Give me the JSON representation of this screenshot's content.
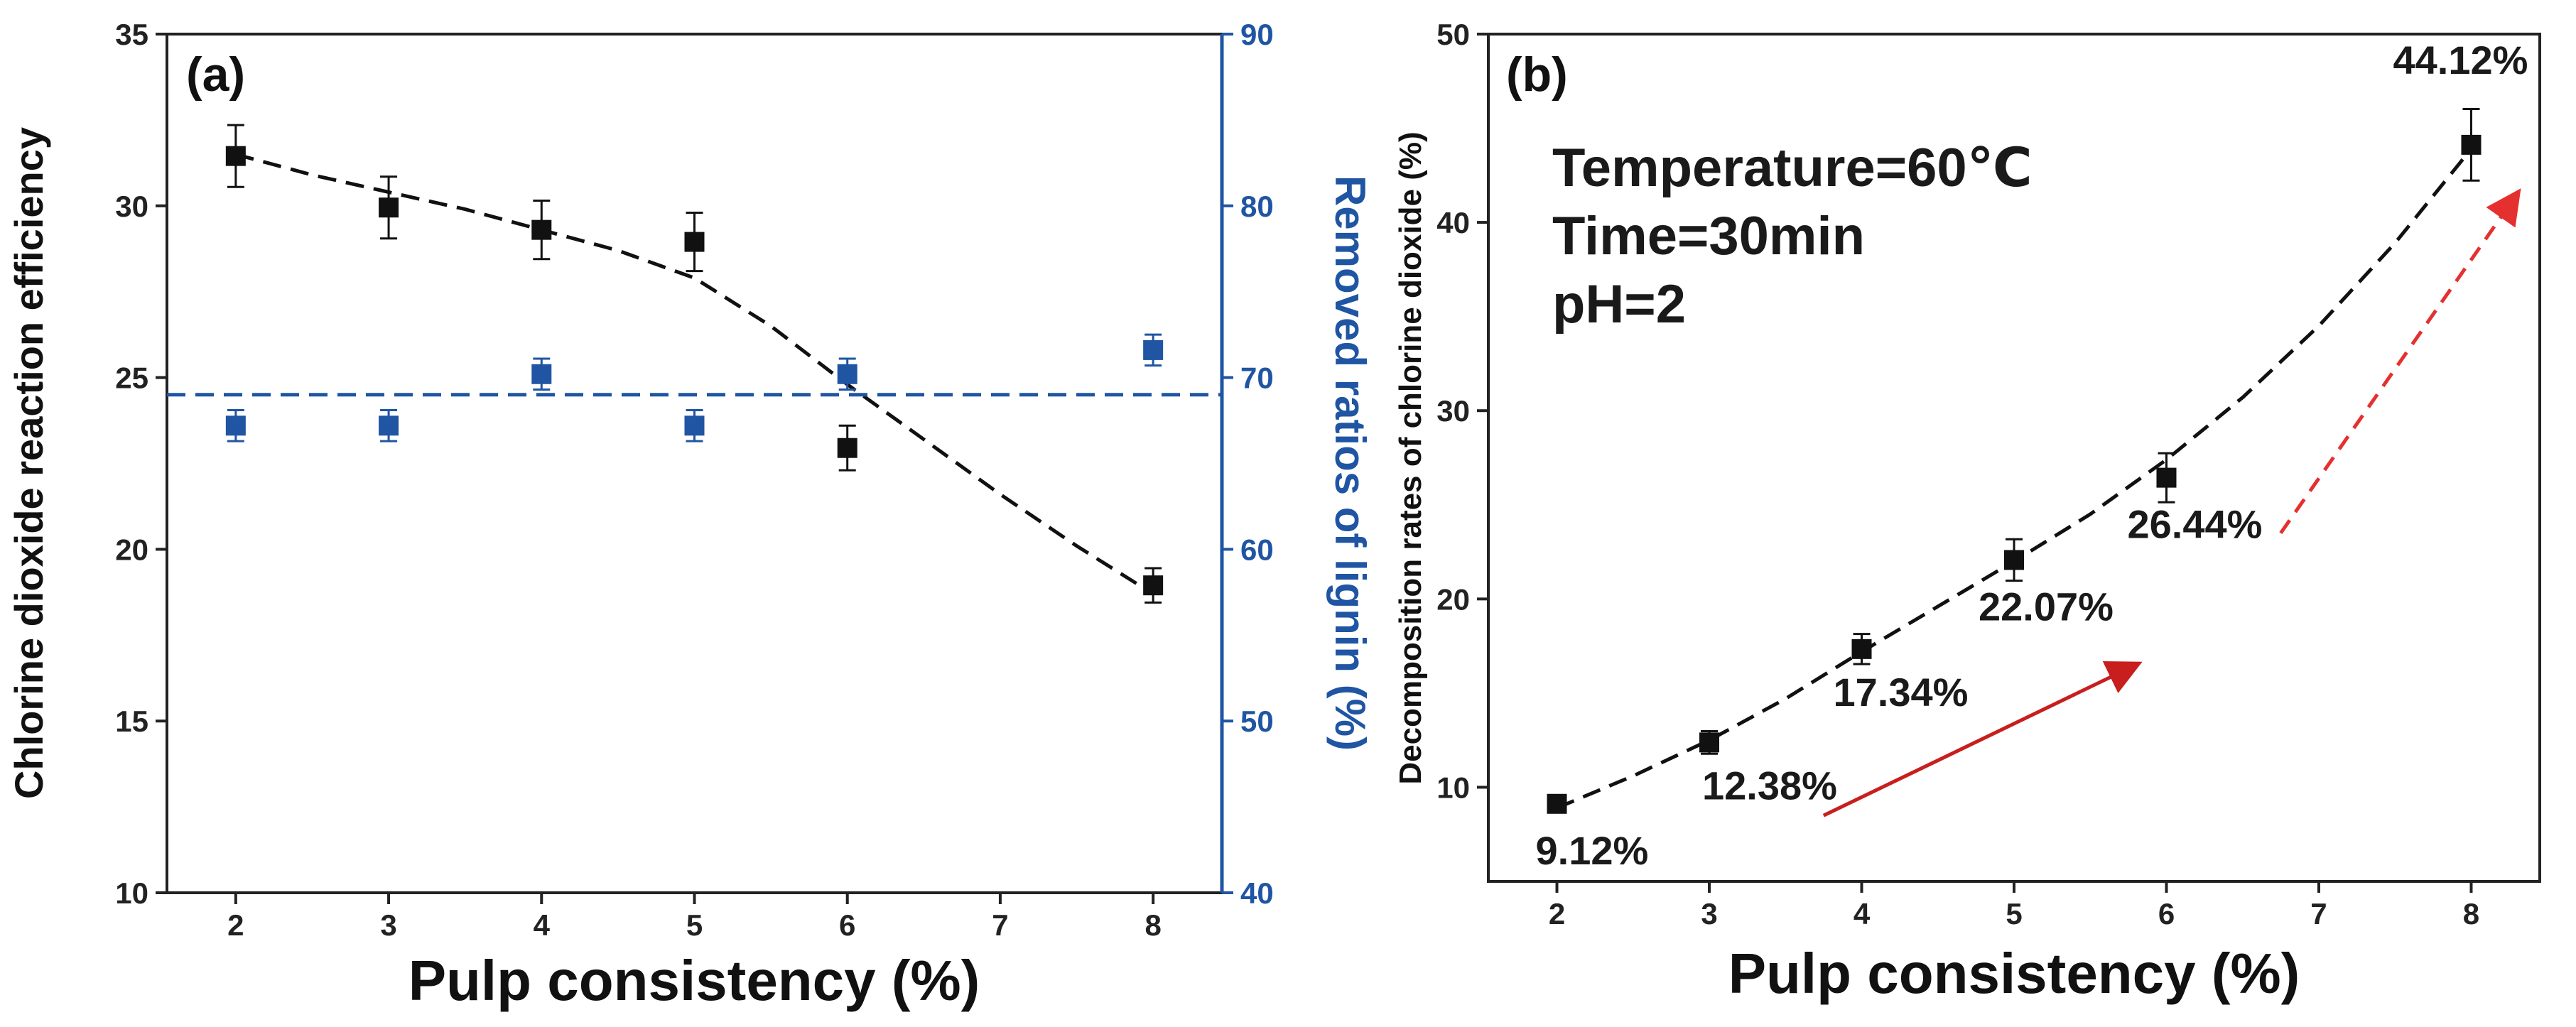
{
  "colors": {
    "black": "#111111",
    "blue": "#1f55a3",
    "red": "#e53030",
    "dark_red": "#c81e1e"
  },
  "chart_data": [
    {
      "type": "scatter",
      "panel_label": "(a)",
      "xlabel": "Pulp consistency (%)",
      "xlim": [
        1.55,
        8.45
      ],
      "xticks": [
        2,
        3,
        4,
        5,
        6,
        7,
        8
      ],
      "ylabel_left": "Chlorine dioxide reaction efficiency",
      "ylim_left": [
        10,
        35
      ],
      "yticks_left": [
        10,
        15,
        20,
        25,
        30,
        35
      ],
      "ylabel_right": "Removed ratios of lignin (%)",
      "ylim_right": [
        40,
        90
      ],
      "yticks_right": [
        40,
        50,
        60,
        70,
        80,
        90
      ],
      "series": [
        {
          "name": "Chlorine dioxide reaction efficiency",
          "axis": "left",
          "color": "#111111",
          "x": [
            2,
            3,
            4,
            5,
            6,
            8
          ],
          "y": [
            31.45,
            29.95,
            29.3,
            28.95,
            22.95,
            18.95
          ],
          "err": [
            0.9,
            0.9,
            0.85,
            0.85,
            0.65,
            0.5
          ]
        },
        {
          "name": "Removed ratios of lignin",
          "axis": "right",
          "color": "#1f55a3",
          "x": [
            2,
            3,
            4,
            5,
            6,
            8
          ],
          "y": [
            67.2,
            67.2,
            70.2,
            67.2,
            70.2,
            71.6
          ],
          "err": [
            0.9,
            0.9,
            0.9,
            0.9,
            0.9,
            0.9
          ]
        }
      ],
      "fit_lines": [
        {
          "name": "efficiency trend",
          "axis": "left",
          "color": "#111111",
          "dashed": true,
          "x": [
            2,
            2.5,
            3,
            3.5,
            4,
            4.5,
            5,
            5.5,
            6,
            6.5,
            7,
            7.5,
            8
          ],
          "y": [
            31.5,
            30.9,
            30.4,
            29.9,
            29.3,
            28.7,
            27.9,
            26.5,
            24.8,
            23.2,
            21.6,
            20.1,
            18.7
          ]
        },
        {
          "name": "lignin removal mean",
          "axis": "right",
          "color": "#1f55a3",
          "dashed": true,
          "x": [
            1.55,
            8.45
          ],
          "y": [
            69.0,
            69.0
          ]
        }
      ]
    },
    {
      "type": "scatter",
      "panel_label": "(b)",
      "xlabel": "Pulp consistency (%)",
      "xlim": [
        1.55,
        8.45
      ],
      "xticks": [
        2,
        3,
        4,
        5,
        6,
        7,
        8
      ],
      "ylabel": "Decomposition rates of chlorine dioxide (%)",
      "ylim": [
        5,
        50
      ],
      "yticks": [
        10,
        20,
        30,
        40,
        50
      ],
      "conditions": [
        "Temperature=60℃",
        "Time=30min",
        "pH=2"
      ],
      "series": [
        {
          "name": "Decomposition rate",
          "color": "#111111",
          "x": [
            2,
            3,
            4,
            5,
            6,
            8
          ],
          "y": [
            9.12,
            12.38,
            17.34,
            22.07,
            26.44,
            44.12
          ],
          "err": [
            0.4,
            0.6,
            0.8,
            1.1,
            1.3,
            1.9
          ]
        }
      ],
      "data_labels": [
        "9.12%",
        "12.38%",
        "17.34%",
        "22.07%",
        "26.44%",
        "44.12%"
      ],
      "fit_line": {
        "color": "#111111",
        "dashed": true,
        "x": [
          2,
          2.5,
          3,
          3.5,
          4,
          4.5,
          5,
          5.5,
          6,
          6.5,
          7,
          7.5,
          8
        ],
        "y": [
          8.9,
          10.6,
          12.5,
          14.7,
          17.2,
          19.6,
          22.0,
          24.5,
          27.4,
          30.7,
          34.5,
          38.9,
          43.9
        ]
      },
      "arrows": [
        {
          "color": "#c81e1e",
          "dashed": false,
          "from": [
            3.75,
            8.5
          ],
          "to": [
            5.8,
            16.5
          ]
        },
        {
          "color": "#e53030",
          "dashed": true,
          "from": [
            6.75,
            23.5
          ],
          "to": [
            8.3,
            41.5
          ]
        }
      ]
    }
  ]
}
